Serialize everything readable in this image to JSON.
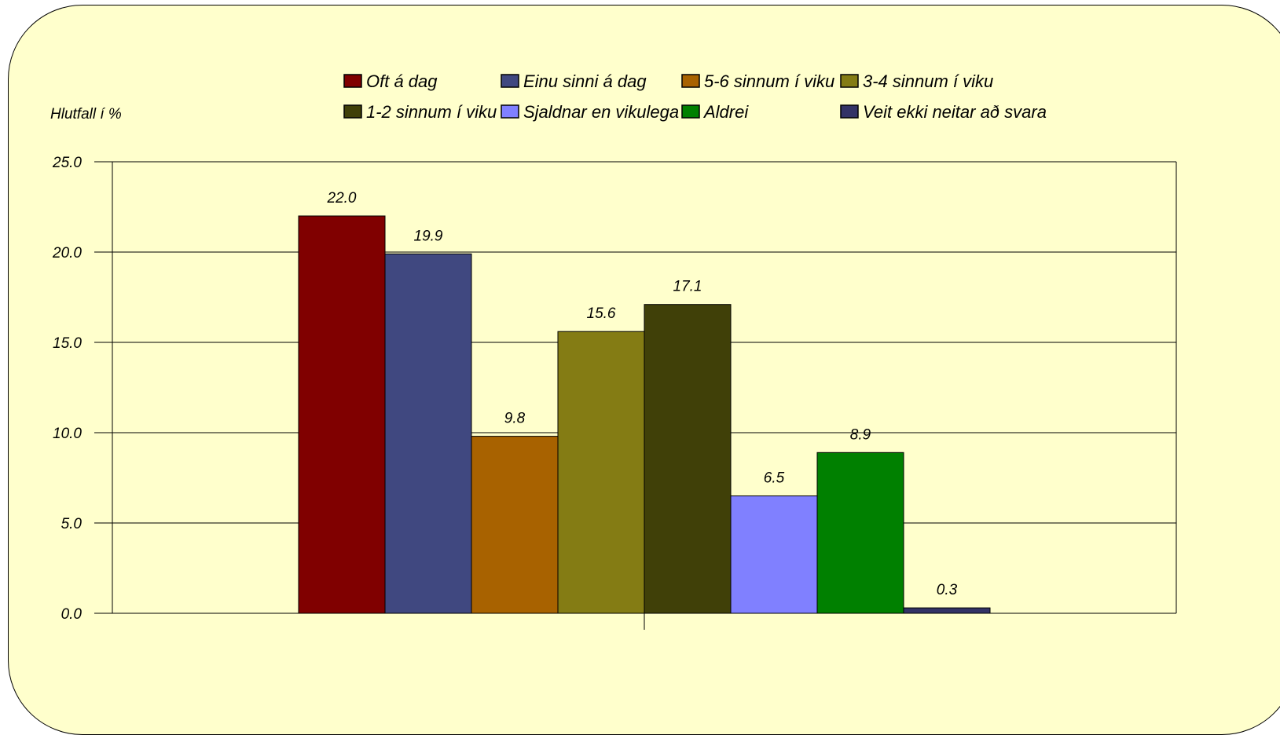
{
  "chart_data": {
    "type": "bar",
    "ylabel": "Hlutfall í %",
    "ylim": [
      0,
      25
    ],
    "yticks": [
      "0.0",
      "5.0",
      "10.0",
      "15.0",
      "20.0",
      "25.0"
    ],
    "grid": true,
    "legend_position": "top",
    "series": [
      {
        "name": "Oft á dag",
        "value": 22.0,
        "label": "22.0",
        "color": "#800000"
      },
      {
        "name": "Einu sinni á dag",
        "value": 19.9,
        "label": "19.9",
        "color": "#404880"
      },
      {
        "name": "5-6 sinnum í viku",
        "value": 9.8,
        "label": "9.8",
        "color": "#a86200"
      },
      {
        "name": "3-4 sinnum í viku",
        "value": 15.6,
        "label": "15.6",
        "color": "#847c14"
      },
      {
        "name": "1-2 sinnum í viku",
        "value": 17.1,
        "label": "17.1",
        "color": "#404008"
      },
      {
        "name": "Sjaldnar en vikulega",
        "value": 6.5,
        "label": "6.5",
        "color": "#8080ff"
      },
      {
        "name": "Aldrei",
        "value": 8.9,
        "label": "8.9",
        "color": "#008000"
      },
      {
        "name": "Veit ekki neitar að svara",
        "value": 0.3,
        "label": "0.3",
        "color": "#333366"
      }
    ]
  }
}
